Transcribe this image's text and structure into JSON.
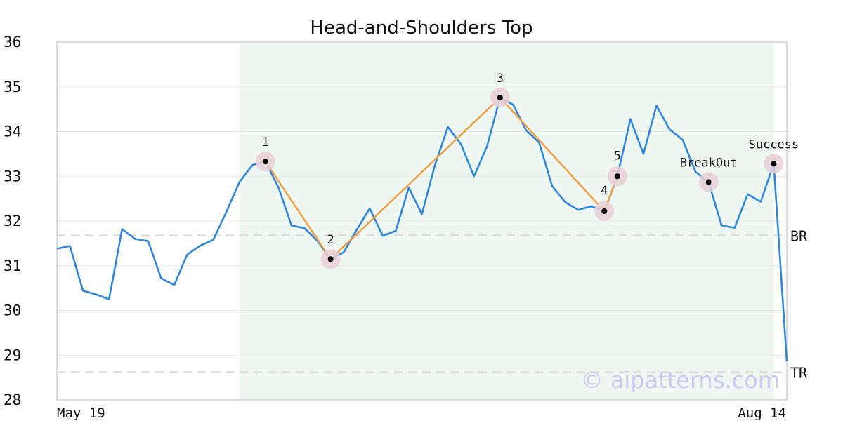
{
  "chart_data": {
    "type": "line",
    "title": "Head-and-Shoulders Top",
    "xlabel": "",
    "ylabel": "",
    "ylim": [
      28,
      36
    ],
    "yticks": [
      28,
      29,
      30,
      31,
      32,
      33,
      34,
      35,
      36
    ],
    "x_tick_labels": [
      "May 19",
      "Aug 14"
    ],
    "x_range": [
      0,
      56
    ],
    "grid": "horizontal",
    "colors": {
      "price": "#2e86de",
      "pattern": "#f39c3d",
      "highlight": "#eef7f2",
      "marker_halo": "#e8cfd7",
      "reference": "#dddddd",
      "axes": "#dddddd"
    },
    "highlight_range": [
      14,
      55
    ],
    "series": [
      {
        "values": [
          31.38,
          31.44,
          30.44,
          30.36,
          30.25,
          31.82,
          31.6,
          31.55,
          30.72,
          30.57,
          31.25,
          31.45,
          31.58,
          32.2,
          32.87,
          33.25,
          33.33,
          32.75,
          31.9,
          31.84,
          31.55,
          31.15,
          31.3,
          31.8,
          32.28,
          31.67,
          31.78,
          32.75,
          32.15,
          33.25,
          34.1,
          33.72,
          33.0,
          33.67,
          34.76,
          34.6,
          34.03,
          33.75,
          32.78,
          32.42,
          32.25,
          32.33,
          32.22,
          33.0,
          34.28,
          33.5,
          34.58,
          34.05,
          33.82,
          33.1,
          32.87,
          31.9,
          31.85,
          32.6,
          32.43,
          33.28,
          28.86
        ]
      }
    ],
    "pattern_points": [
      {
        "label": "1",
        "x": 16,
        "y": 33.33
      },
      {
        "label": "2",
        "x": 21,
        "y": 31.15
      },
      {
        "label": "3",
        "x": 34,
        "y": 34.76
      },
      {
        "label": "4",
        "x": 42,
        "y": 32.22
      },
      {
        "label": "5",
        "x": 43,
        "y": 33.0
      }
    ],
    "event_points": [
      {
        "label": "BreakOut",
        "x": 50,
        "y": 32.87
      },
      {
        "label": "Success",
        "x": 55,
        "y": 33.28
      }
    ],
    "reference_lines": [
      {
        "label": "BR",
        "y": 31.68
      },
      {
        "label": "TR",
        "y": 28.62
      }
    ],
    "watermark": "© aipatterns.com"
  }
}
